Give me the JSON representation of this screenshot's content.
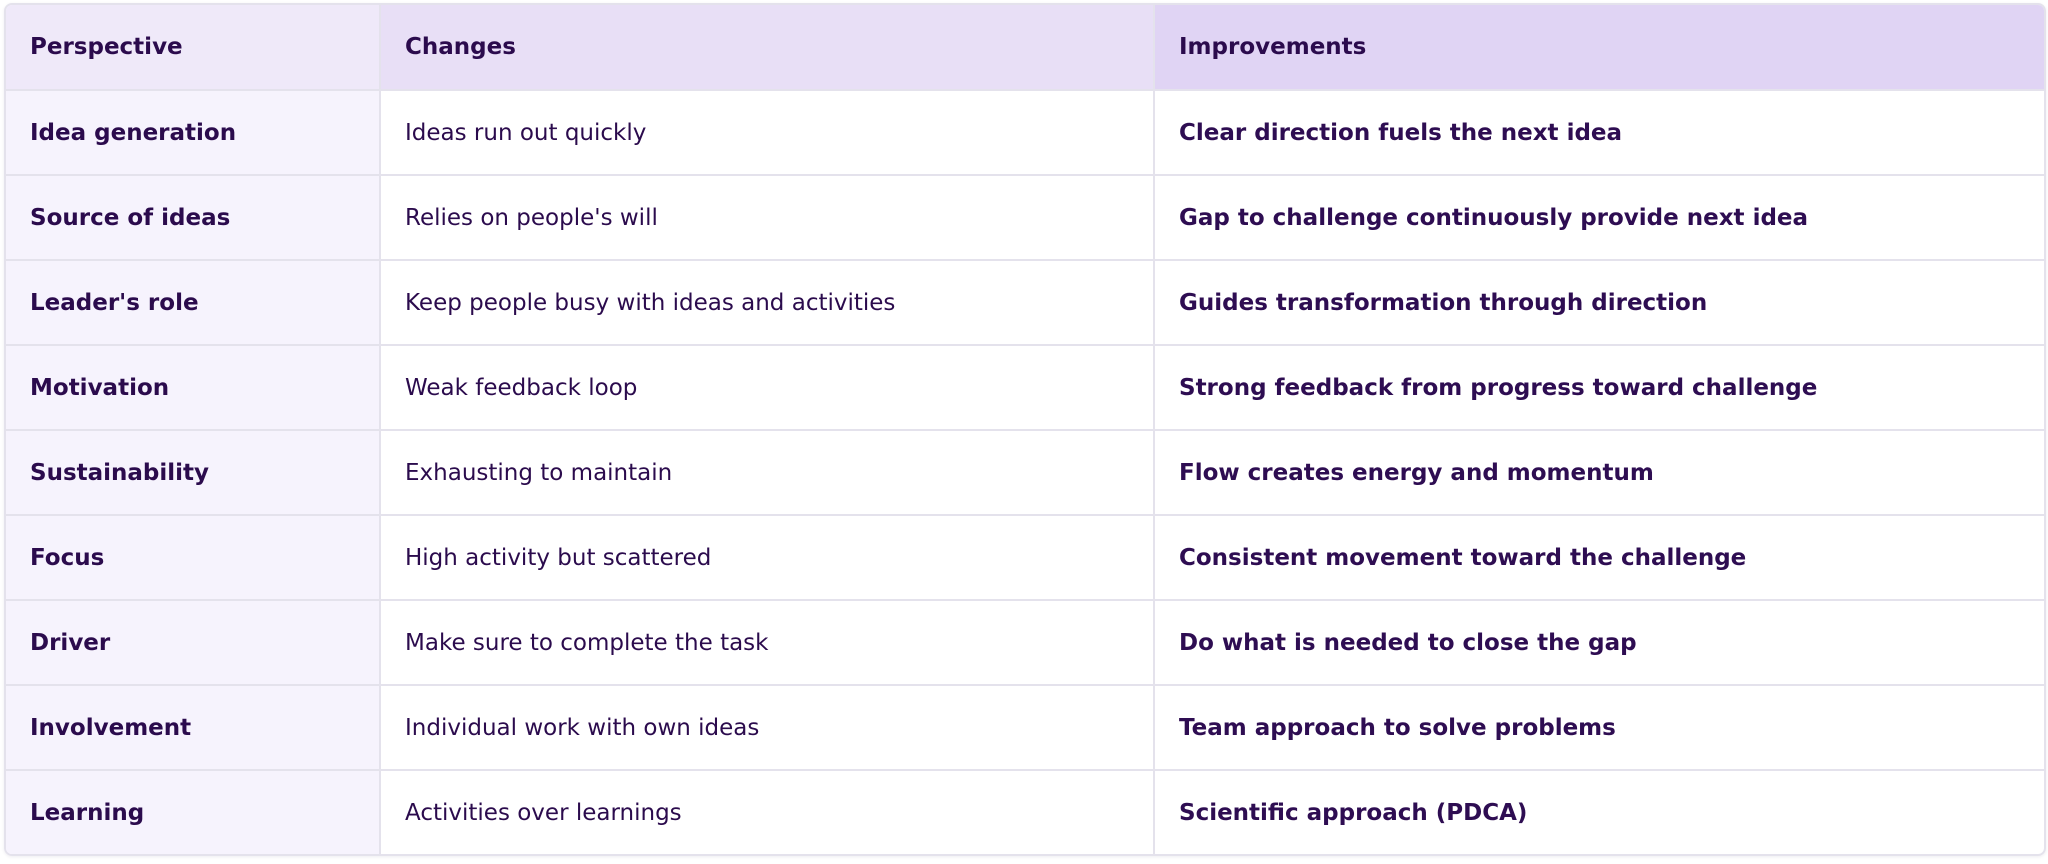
{
  "table": {
    "headers": [
      "Perspective",
      "Changes",
      "Improvements"
    ],
    "rows": [
      [
        "Idea generation",
        "Ideas run out quickly",
        "Clear direction fuels the next idea"
      ],
      [
        "Source of ideas",
        "Relies on people's will",
        "Gap to challenge continuously provide next idea"
      ],
      [
        "Leader's role",
        "Keep people busy with ideas and activities",
        "Guides transformation through direction"
      ],
      [
        "Motivation",
        "Weak feedback loop",
        "Strong feedback from progress toward challenge"
      ],
      [
        "Sustainability",
        "Exhausting to maintain",
        "Flow creates energy and momentum"
      ],
      [
        "Focus",
        "High activity but scattered",
        "Consistent movement toward the challenge"
      ],
      [
        "Driver",
        "Make sure to complete the task",
        "Do what is needed to close the gap"
      ],
      [
        "Involvement",
        "Individual work with own ideas",
        "Team approach to solve problems"
      ],
      [
        "Learning",
        "Activities over learnings",
        "Scientific approach (PDCA)"
      ]
    ]
  }
}
